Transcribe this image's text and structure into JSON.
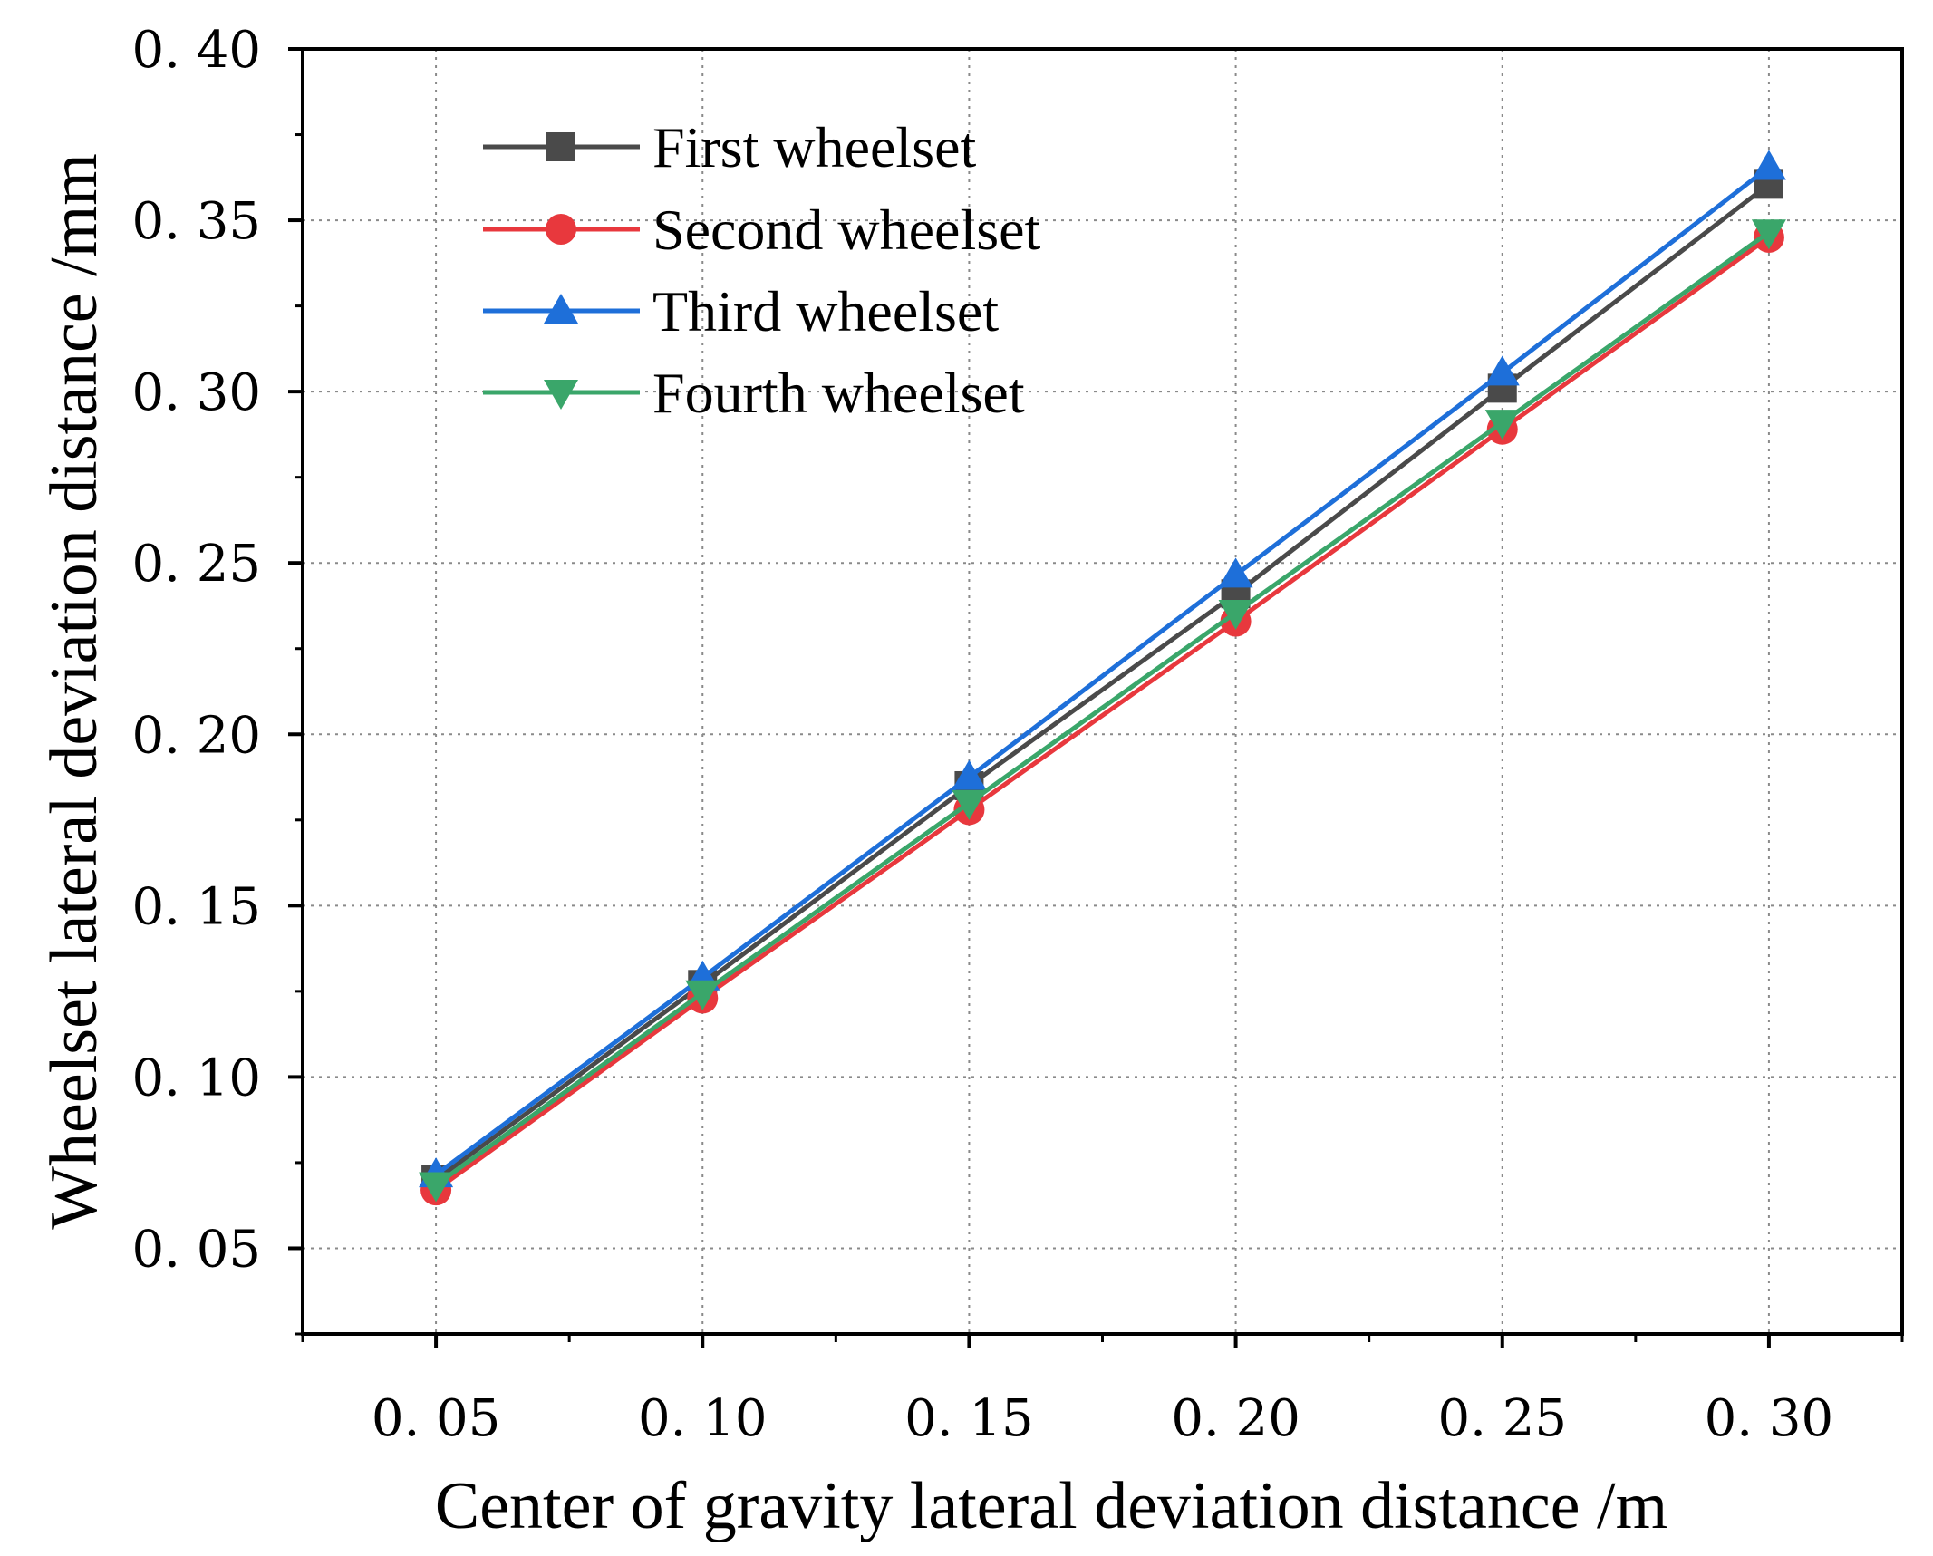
{
  "chart_data": {
    "type": "line",
    "title": "",
    "xlabel": "Center of gravity lateral  deviation distance /m",
    "ylabel": "Wheelset lateral deviation distance /mm",
    "x": [
      0.05,
      0.1,
      0.15,
      0.2,
      0.25,
      0.3
    ],
    "x_tick_labels": [
      "0. 05",
      "0. 10",
      "0. 15",
      "0. 20",
      "0. 25",
      "0. 30"
    ],
    "y_ticks": [
      0.05,
      0.1,
      0.15,
      0.2,
      0.25,
      0.3,
      0.35,
      0.4
    ],
    "y_tick_labels": [
      "0. 05",
      "0. 10",
      "0. 15",
      "0. 20",
      "0. 25",
      "0. 30",
      "0. 35",
      "0. 40"
    ],
    "xlim": [
      0.025,
      0.325
    ],
    "ylim": [
      0.025,
      0.4
    ],
    "grid": true,
    "legend_position": "top-left",
    "series": [
      {
        "name": "First wheelset",
        "color": "#4a4a4a",
        "marker": "square",
        "values": [
          0.07,
          0.127,
          0.185,
          0.241,
          0.301,
          0.3605
        ]
      },
      {
        "name": "Second wheelset",
        "color": "#e8383d",
        "marker": "circle",
        "values": [
          0.067,
          0.123,
          0.178,
          0.233,
          0.289,
          0.345
        ]
      },
      {
        "name": "Third wheelset",
        "color": "#1e6fd9",
        "marker": "triangle-up",
        "values": [
          0.0715,
          0.129,
          0.1875,
          0.2465,
          0.3055,
          0.3655
        ]
      },
      {
        "name": "Fourth wheelset",
        "color": "#3aa66a",
        "marker": "triangle-down",
        "values": [
          0.0685,
          0.1245,
          0.18,
          0.2355,
          0.291,
          0.3465
        ]
      }
    ]
  }
}
